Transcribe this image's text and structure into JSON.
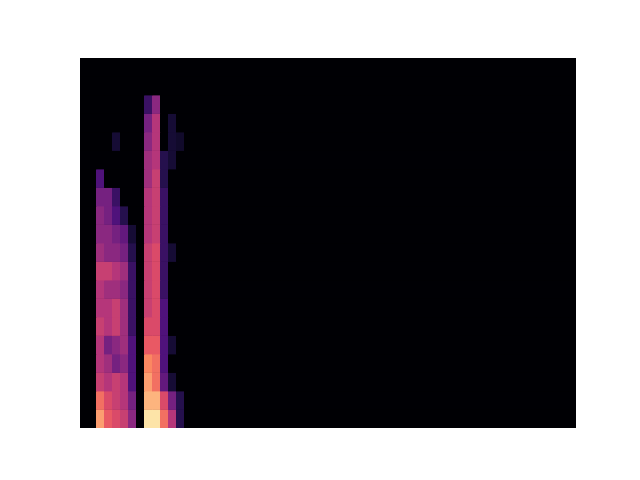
{
  "chart_data": {
    "type": "heatmap",
    "xlim": [
      0,
      62
    ],
    "ylim": [
      0,
      20
    ],
    "tick_labels": false,
    "zlim": [
      0,
      100
    ],
    "z": [
      [
        0,
        0,
        80,
        65,
        60,
        55,
        40,
        0,
        95,
        95,
        70,
        50,
        15,
        0,
        0,
        0,
        0,
        0,
        0,
        0,
        0,
        0,
        0,
        0,
        0,
        0,
        0,
        0,
        0,
        0,
        0,
        0,
        0,
        0,
        0,
        0,
        0,
        0,
        0,
        0,
        0,
        0,
        0,
        0,
        0,
        0,
        0,
        0,
        0,
        0,
        0,
        0,
        0,
        0,
        0,
        0,
        0,
        0,
        0,
        0,
        0,
        0
      ],
      [
        0,
        0,
        70,
        60,
        55,
        50,
        35,
        0,
        85,
        85,
        60,
        35,
        15,
        0,
        0,
        0,
        0,
        0,
        0,
        0,
        0,
        0,
        0,
        0,
        0,
        0,
        0,
        0,
        0,
        0,
        0,
        0,
        0,
        0,
        0,
        0,
        0,
        0,
        0,
        0,
        0,
        0,
        0,
        0,
        0,
        0,
        0,
        0,
        0,
        0,
        0,
        0,
        0,
        0,
        0,
        0,
        0,
        0,
        0,
        0,
        0,
        0
      ],
      [
        0,
        0,
        55,
        50,
        55,
        50,
        25,
        0,
        80,
        70,
        30,
        10,
        0,
        0,
        0,
        0,
        0,
        0,
        0,
        0,
        0,
        0,
        0,
        0,
        0,
        0,
        0,
        0,
        0,
        0,
        0,
        0,
        0,
        0,
        0,
        0,
        0,
        0,
        0,
        0,
        0,
        0,
        0,
        0,
        0,
        0,
        0,
        0,
        0,
        0,
        0,
        0,
        0,
        0,
        0,
        0,
        0,
        0,
        0,
        0,
        0,
        0
      ],
      [
        0,
        0,
        50,
        45,
        35,
        40,
        25,
        0,
        75,
        70,
        25,
        0,
        0,
        0,
        0,
        0,
        0,
        0,
        0,
        0,
        0,
        0,
        0,
        0,
        0,
        0,
        0,
        0,
        0,
        0,
        0,
        0,
        0,
        0,
        0,
        0,
        0,
        0,
        0,
        0,
        0,
        0,
        0,
        0,
        0,
        0,
        0,
        0,
        0,
        0,
        0,
        0,
        0,
        0,
        0,
        0,
        0,
        0,
        0,
        0,
        0,
        0
      ],
      [
        0,
        0,
        50,
        35,
        40,
        45,
        25,
        0,
        65,
        65,
        25,
        10,
        0,
        0,
        0,
        0,
        0,
        0,
        0,
        0,
        0,
        0,
        0,
        0,
        0,
        0,
        0,
        0,
        0,
        0,
        0,
        0,
        0,
        0,
        0,
        0,
        0,
        0,
        0,
        0,
        0,
        0,
        0,
        0,
        0,
        0,
        0,
        0,
        0,
        0,
        0,
        0,
        0,
        0,
        0,
        0,
        0,
        0,
        0,
        0,
        0,
        0
      ],
      [
        0,
        0,
        55,
        50,
        55,
        45,
        20,
        0,
        60,
        60,
        25,
        0,
        0,
        0,
        0,
        0,
        0,
        0,
        0,
        0,
        0,
        0,
        0,
        0,
        0,
        0,
        0,
        0,
        0,
        0,
        0,
        0,
        0,
        0,
        0,
        0,
        0,
        0,
        0,
        0,
        0,
        0,
        0,
        0,
        0,
        0,
        0,
        0,
        0,
        0,
        0,
        0,
        0,
        0,
        0,
        0,
        0,
        0,
        0,
        0,
        0,
        0
      ],
      [
        0,
        0,
        50,
        50,
        55,
        45,
        20,
        0,
        55,
        60,
        25,
        0,
        0,
        0,
        0,
        0,
        0,
        0,
        0,
        0,
        0,
        0,
        0,
        0,
        0,
        0,
        0,
        0,
        0,
        0,
        0,
        0,
        0,
        0,
        0,
        0,
        0,
        0,
        0,
        0,
        0,
        0,
        0,
        0,
        0,
        0,
        0,
        0,
        0,
        0,
        0,
        0,
        0,
        0,
        0,
        0,
        0,
        0,
        0,
        0,
        0,
        0
      ],
      [
        0,
        0,
        50,
        45,
        45,
        40,
        20,
        0,
        55,
        60,
        20,
        0,
        0,
        0,
        0,
        0,
        0,
        0,
        0,
        0,
        0,
        0,
        0,
        0,
        0,
        0,
        0,
        0,
        0,
        0,
        0,
        0,
        0,
        0,
        0,
        0,
        0,
        0,
        0,
        0,
        0,
        0,
        0,
        0,
        0,
        0,
        0,
        0,
        0,
        0,
        0,
        0,
        0,
        0,
        0,
        0,
        0,
        0,
        0,
        0,
        0,
        0
      ],
      [
        0,
        0,
        55,
        55,
        50,
        45,
        20,
        0,
        55,
        60,
        20,
        0,
        0,
        0,
        0,
        0,
        0,
        0,
        0,
        0,
        0,
        0,
        0,
        0,
        0,
        0,
        0,
        0,
        0,
        0,
        0,
        0,
        0,
        0,
        0,
        0,
        0,
        0,
        0,
        0,
        0,
        0,
        0,
        0,
        0,
        0,
        0,
        0,
        0,
        0,
        0,
        0,
        0,
        0,
        0,
        0,
        0,
        0,
        0,
        0,
        0,
        0
      ],
      [
        0,
        0,
        45,
        40,
        40,
        35,
        15,
        0,
        55,
        60,
        20,
        10,
        0,
        0,
        0,
        0,
        0,
        0,
        0,
        0,
        0,
        0,
        0,
        0,
        0,
        0,
        0,
        0,
        0,
        0,
        0,
        0,
        0,
        0,
        0,
        0,
        0,
        0,
        0,
        0,
        0,
        0,
        0,
        0,
        0,
        0,
        0,
        0,
        0,
        0,
        0,
        0,
        0,
        0,
        0,
        0,
        0,
        0,
        0,
        0,
        0,
        0
      ],
      [
        0,
        0,
        40,
        40,
        35,
        30,
        10,
        0,
        50,
        55,
        20,
        0,
        0,
        0,
        0,
        0,
        0,
        0,
        0,
        0,
        0,
        0,
        0,
        0,
        0,
        0,
        0,
        0,
        0,
        0,
        0,
        0,
        0,
        0,
        0,
        0,
        0,
        0,
        0,
        0,
        0,
        0,
        0,
        0,
        0,
        0,
        0,
        0,
        0,
        0,
        0,
        0,
        0,
        0,
        0,
        0,
        0,
        0,
        0,
        0,
        0,
        0
      ],
      [
        0,
        0,
        40,
        35,
        25,
        15,
        0,
        0,
        50,
        55,
        20,
        0,
        0,
        0,
        0,
        0,
        0,
        0,
        0,
        0,
        0,
        0,
        0,
        0,
        0,
        0,
        0,
        0,
        0,
        0,
        0,
        0,
        0,
        0,
        0,
        0,
        0,
        0,
        0,
        0,
        0,
        0,
        0,
        0,
        0,
        0,
        0,
        0,
        0,
        0,
        0,
        0,
        0,
        0,
        0,
        0,
        0,
        0,
        0,
        0,
        0,
        0
      ],
      [
        0,
        0,
        35,
        35,
        20,
        0,
        0,
        0,
        50,
        55,
        20,
        0,
        0,
        0,
        0,
        0,
        0,
        0,
        0,
        0,
        0,
        0,
        0,
        0,
        0,
        0,
        0,
        0,
        0,
        0,
        0,
        0,
        0,
        0,
        0,
        0,
        0,
        0,
        0,
        0,
        0,
        0,
        0,
        0,
        0,
        0,
        0,
        0,
        0,
        0,
        0,
        0,
        0,
        0,
        0,
        0,
        0,
        0,
        0,
        0,
        0,
        0
      ],
      [
        0,
        0,
        25,
        0,
        0,
        0,
        0,
        0,
        45,
        55,
        15,
        0,
        0,
        0,
        0,
        0,
        0,
        0,
        0,
        0,
        0,
        0,
        0,
        0,
        0,
        0,
        0,
        0,
        0,
        0,
        0,
        0,
        0,
        0,
        0,
        0,
        0,
        0,
        0,
        0,
        0,
        0,
        0,
        0,
        0,
        0,
        0,
        0,
        0,
        0,
        0,
        0,
        0,
        0,
        0,
        0,
        0,
        0,
        0,
        0,
        0,
        0
      ],
      [
        0,
        0,
        0,
        0,
        0,
        0,
        0,
        0,
        45,
        50,
        15,
        10,
        0,
        0,
        0,
        0,
        0,
        0,
        0,
        0,
        0,
        0,
        0,
        0,
        0,
        0,
        0,
        0,
        0,
        0,
        0,
        0,
        0,
        0,
        0,
        0,
        0,
        0,
        0,
        0,
        0,
        0,
        0,
        0,
        0,
        0,
        0,
        0,
        0,
        0,
        0,
        0,
        0,
        0,
        0,
        0,
        0,
        0,
        0,
        0,
        0,
        0
      ],
      [
        0,
        0,
        0,
        0,
        10,
        0,
        0,
        0,
        40,
        50,
        0,
        10,
        8,
        0,
        0,
        0,
        0,
        0,
        0,
        0,
        0,
        0,
        0,
        0,
        0,
        0,
        0,
        0,
        0,
        0,
        0,
        0,
        0,
        0,
        0,
        0,
        0,
        0,
        0,
        0,
        0,
        0,
        0,
        0,
        0,
        0,
        0,
        0,
        0,
        0,
        0,
        0,
        0,
        0,
        0,
        0,
        0,
        0,
        0,
        0,
        0,
        0
      ],
      [
        0,
        0,
        0,
        0,
        0,
        0,
        0,
        0,
        35,
        50,
        0,
        10,
        0,
        0,
        0,
        0,
        0,
        0,
        0,
        0,
        0,
        0,
        0,
        0,
        0,
        0,
        0,
        0,
        0,
        0,
        0,
        0,
        0,
        0,
        0,
        0,
        0,
        0,
        0,
        0,
        0,
        0,
        0,
        0,
        0,
        0,
        0,
        0,
        0,
        0,
        0,
        0,
        0,
        0,
        0,
        0,
        0,
        0,
        0,
        0,
        0,
        0
      ],
      [
        0,
        0,
        0,
        0,
        0,
        0,
        0,
        0,
        20,
        40,
        0,
        0,
        0,
        0,
        0,
        0,
        0,
        0,
        0,
        0,
        0,
        0,
        0,
        0,
        0,
        0,
        0,
        0,
        0,
        0,
        0,
        0,
        0,
        0,
        0,
        0,
        0,
        0,
        0,
        0,
        0,
        0,
        0,
        0,
        0,
        0,
        0,
        0,
        0,
        0,
        0,
        0,
        0,
        0,
        0,
        0,
        0,
        0,
        0,
        0,
        0,
        0
      ],
      [
        0,
        0,
        0,
        0,
        0,
        0,
        0,
        0,
        0,
        0,
        0,
        0,
        0,
        0,
        0,
        0,
        0,
        0,
        0,
        0,
        0,
        0,
        0,
        0,
        0,
        0,
        0,
        0,
        0,
        0,
        0,
        0,
        0,
        0,
        0,
        0,
        0,
        0,
        0,
        0,
        0,
        0,
        0,
        0,
        0,
        0,
        0,
        0,
        0,
        0,
        0,
        0,
        0,
        0,
        0,
        0,
        0,
        0,
        0,
        0,
        0,
        0
      ],
      [
        0,
        0,
        0,
        0,
        0,
        0,
        0,
        0,
        0,
        0,
        0,
        0,
        0,
        0,
        0,
        0,
        0,
        0,
        0,
        0,
        0,
        0,
        0,
        0,
        0,
        0,
        0,
        0,
        0,
        0,
        0,
        0,
        0,
        0,
        0,
        0,
        0,
        0,
        0,
        0,
        0,
        0,
        0,
        0,
        0,
        0,
        0,
        0,
        0,
        0,
        0,
        0,
        0,
        0,
        0,
        0,
        0,
        0,
        0,
        0,
        0,
        0
      ]
    ]
  }
}
